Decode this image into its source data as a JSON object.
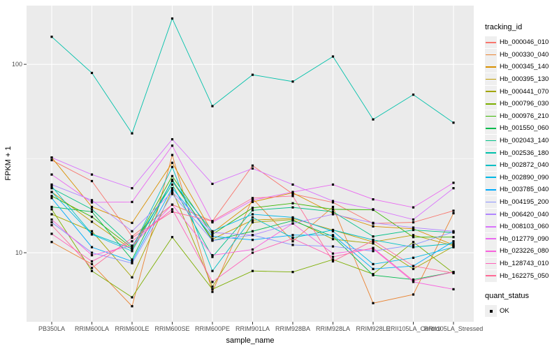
{
  "chart_data": {
    "type": "line",
    "title": "",
    "xlabel": "sample_name",
    "ylabel": "FPKM + 1",
    "y_scale": "log10",
    "ylim": [
      4.3,
      205
    ],
    "y_ticks": [
      {
        "label": "100",
        "value": 100
      },
      {
        "label": "10",
        "value": 10
      }
    ],
    "y_minor_gridlines": [
      31.6
    ],
    "grid": true,
    "panel_bg": "#EBEBEB",
    "grid_color": "#FFFFFF",
    "axis_text_color": "#4D4D4D",
    "marker": "black-square",
    "legend_position": "right",
    "categories": [
      "PB350LA",
      "RRIM600LA",
      "RRIM600LE",
      "RRIM600SE",
      "RRIM600PE",
      "RRIM901LA",
      "RRIM928BA",
      "RRIM928LA",
      "RRIM928LE",
      "RRII105LA_Control",
      "RRII105LA_Stressed"
    ],
    "series": [
      {
        "name": "Hb_000046_010",
        "color": "#F8766D",
        "values": [
          31,
          24,
          12.2,
          18,
          14.7,
          29,
          20.5,
          18.5,
          14.3,
          14.5,
          16.7
        ]
      },
      {
        "name": "Hb_000330_040",
        "color": "#EA8331",
        "values": [
          11.4,
          8.7,
          5.2,
          33,
          6.2,
          19.4,
          11.5,
          17.5,
          5.4,
          6.0,
          16.2
        ]
      },
      {
        "name": "Hb_000345_140",
        "color": "#D89000",
        "values": [
          32,
          17.5,
          14.4,
          30,
          12.8,
          18.6,
          20.8,
          16.2,
          13.8,
          13.4,
          11.0
        ]
      },
      {
        "name": "Hb_000395_130",
        "color": "#C09B00",
        "values": [
          21,
          14.6,
          10.4,
          24,
          11.8,
          14.9,
          15.2,
          13.2,
          11.4,
          12.4,
          10.9
        ]
      },
      {
        "name": "Hb_000441_070",
        "color": "#A3A500",
        "values": [
          16,
          13,
          7.4,
          21.5,
          6.6,
          14.5,
          15,
          11.8,
          11.2,
          8.2,
          10.8
        ]
      },
      {
        "name": "Hb_000796_030",
        "color": "#7CAE00",
        "values": [
          17,
          8,
          5.8,
          12.1,
          6.4,
          8,
          7.9,
          9.2,
          7.7,
          11.4,
          7.8
        ]
      },
      {
        "name": "Hb_000976_210",
        "color": "#39B600",
        "values": [
          20,
          15.5,
          10.6,
          25.5,
          12.5,
          17.3,
          18.3,
          17,
          16.9,
          12.1,
          12.1
        ]
      },
      {
        "name": "Hb_001550_060",
        "color": "#00BB4E",
        "values": [
          17.5,
          16.5,
          9.2,
          24.4,
          11.6,
          13,
          14.8,
          12.2,
          7.6,
          7.2,
          7.9
        ]
      },
      {
        "name": "Hb_002043_140",
        "color": "#00C087",
        "values": [
          22,
          17,
          10.8,
          23,
          9.5,
          16.8,
          17.4,
          16.5,
          12.2,
          13.2,
          12.8
        ]
      },
      {
        "name": "Hb_002536_180",
        "color": "#00C1AA",
        "values": [
          140,
          90,
          43,
          175,
          60,
          88,
          81,
          110,
          51,
          69,
          49
        ]
      },
      {
        "name": "Hb_002872_040",
        "color": "#00BFC4",
        "values": [
          22.5,
          12.6,
          10.5,
          28.5,
          8,
          15.4,
          12,
          13.2,
          11.7,
          10.7,
          11.2
        ]
      },
      {
        "name": "Hb_002890_090",
        "color": "#00B8E5",
        "values": [
          21,
          12.5,
          10.2,
          24,
          13,
          16,
          15.4,
          13,
          8.7,
          9.4,
          10.7
        ]
      },
      {
        "name": "Hb_003785_040",
        "color": "#00ACFC",
        "values": [
          19.5,
          10.7,
          9.0,
          22,
          12.2,
          11.7,
          12.4,
          12.4,
          8.2,
          8.5,
          11.5
        ]
      },
      {
        "name": "Hb_004195_200",
        "color": "#8B93FF",
        "values": [
          14.5,
          10,
          8.8,
          20.5,
          11.6,
          12.4,
          11,
          10.8,
          10.2,
          11,
          12.9
        ]
      },
      {
        "name": "Hb_006420_040",
        "color": "#B186FF",
        "values": [
          23,
          19,
          13,
          21,
          12.8,
          12.4,
          14.3,
          16,
          14.4,
          13.6,
          13.0
        ]
      },
      {
        "name": "Hb_008103_060",
        "color": "#D973FC",
        "values": [
          32,
          26,
          22,
          40,
          23.2,
          28,
          23,
          18.8,
          17,
          15,
          22
        ]
      },
      {
        "name": "Hb_012779_090",
        "color": "#EA69F0",
        "values": [
          26,
          18.5,
          18.6,
          37,
          14.5,
          19,
          21,
          23,
          19.2,
          17.4,
          23.5
        ]
      },
      {
        "name": "Hb_023226_080",
        "color": "#F862DD",
        "values": [
          15,
          9.7,
          10.9,
          18,
          9.7,
          10.4,
          14.3,
          9.9,
          10.5,
          7.0,
          6.4
        ]
      },
      {
        "name": "Hb_128743_010",
        "color": "#FF61B9",
        "values": [
          12.6,
          9.0,
          11.5,
          17,
          7.0,
          10,
          11.9,
          9.5,
          10.6,
          7.1,
          7.9
        ]
      },
      {
        "name": "Hb_162275_050",
        "color": "#FF6A96",
        "values": [
          14,
          8.3,
          12,
          16.5,
          14.7,
          19.5,
          20,
          9,
          11.6,
          8.5,
          7.8
        ]
      }
    ]
  },
  "legend": {
    "tracking_title": "tracking_id",
    "quant_title": "quant_status",
    "quant_label": "OK"
  }
}
